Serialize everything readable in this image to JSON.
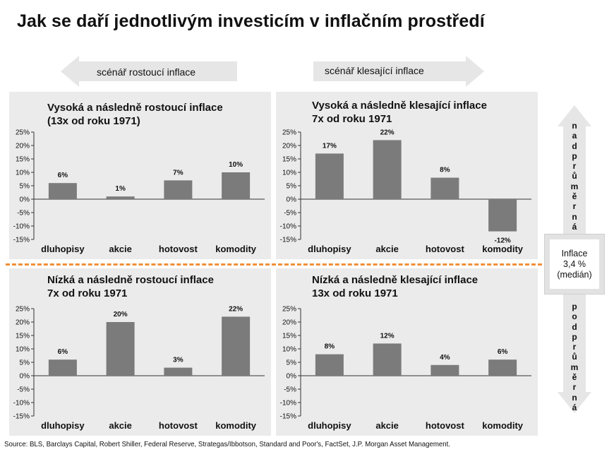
{
  "title": "Jak se daří jednotlivým investicím v inflačním prostředí",
  "scenario_left": "scénář rostoucí inflace",
  "scenario_right": "scénář klesající inflace",
  "side": {
    "top_word": "nadprůměrná",
    "bottom_word": "podprůměrná",
    "box_line1": "Inflace",
    "box_line2": "3,4 %",
    "box_line3": "(medián)"
  },
  "source": "Source: BLS, Barclays Capital, Robert Shiller, Federal Reserve, Strategas/Ibbotson, Standard and Poor's, FactSet, J.P. Morgan Asset Management.",
  "colors": {
    "bar": "#7a7b7a",
    "panel": "#ebebeb",
    "separator": "#f0903a",
    "arrow": "#e6e6e6"
  },
  "chart_data": [
    {
      "type": "bar",
      "title": "Vysoká a následně rostoucí inflace\n(13x od roku 1971)",
      "categories": [
        "dluhopisy",
        "akcie",
        "hotovost",
        "komodity"
      ],
      "values": [
        6,
        1,
        7,
        10
      ],
      "labels": [
        "6%",
        "1%",
        "7%",
        "10%"
      ],
      "ylim": [
        -15,
        25
      ],
      "yticks": [
        "25%",
        "20%",
        "15%",
        "10%",
        "5%",
        "0%",
        "-5%",
        "-10%",
        "-15%"
      ],
      "grid": false
    },
    {
      "type": "bar",
      "title": "Vysoká a následně klesající inflace\n7x od roku 1971",
      "categories": [
        "dluhopisy",
        "akcie",
        "hotovost",
        "komodity"
      ],
      "values": [
        17,
        22,
        8,
        -12
      ],
      "labels": [
        "17%",
        "22%",
        "8%",
        "-12%"
      ],
      "ylim": [
        -15,
        25
      ],
      "yticks": [
        "25%",
        "20%",
        "15%",
        "10%",
        "5%",
        "0%",
        "-5%",
        "-10%",
        "-15%"
      ],
      "grid": false
    },
    {
      "type": "bar",
      "title": "Nízká a následně rostoucí inflace\n7x od roku 1971",
      "categories": [
        "dluhopisy",
        "akcie",
        "hotovost",
        "komodity"
      ],
      "values": [
        6,
        20,
        3,
        22
      ],
      "labels": [
        "6%",
        "20%",
        "3%",
        "22%"
      ],
      "ylim": [
        -15,
        25
      ],
      "yticks": [
        "25%",
        "20%",
        "15%",
        "10%",
        "5%",
        "0%",
        "-5%",
        "-10%",
        "-15%"
      ],
      "grid": false
    },
    {
      "type": "bar",
      "title": "Nízká a následně klesající inflace\n13x od roku 1971",
      "categories": [
        "dluhopisy",
        "akcie",
        "hotovost",
        "komodity"
      ],
      "values": [
        8,
        12,
        4,
        6
      ],
      "labels": [
        "8%",
        "12%",
        "4%",
        "6%"
      ],
      "ylim": [
        -15,
        25
      ],
      "yticks": [
        "25%",
        "20%",
        "15%",
        "10%",
        "5%",
        "0%",
        "-5%",
        "-10%",
        "-15%"
      ],
      "grid": false
    }
  ]
}
